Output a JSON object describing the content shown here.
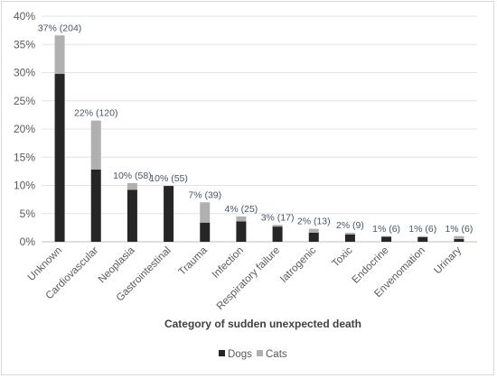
{
  "chart_data": {
    "type": "bar",
    "stacked": true,
    "categories": [
      "Unknown",
      "Cardiovascular",
      "Neoplasia",
      "Gastrointestinal",
      "Trauma",
      "Infection",
      "Respiratory failure",
      "Iatrogenic",
      "Toxic",
      "Endocrine",
      "Envenomation",
      "Urinary"
    ],
    "series": [
      {
        "name": "Dogs",
        "color": "#262626",
        "values": [
          29.8,
          12.8,
          9.2,
          9.9,
          3.4,
          3.6,
          2.7,
          1.6,
          1.3,
          0.9,
          0.8,
          0.5
        ]
      },
      {
        "name": "Cats",
        "color": "#b0b0b0",
        "values": [
          6.8,
          8.7,
          1.2,
          0.0,
          3.6,
          0.9,
          0.3,
          0.7,
          0.3,
          0.1,
          0.2,
          0.5
        ]
      }
    ],
    "data_labels": [
      "37% (204)",
      "22% (120)",
      "10% (58)",
      "10% (55)",
      "7% (39)",
      "4% (25)",
      "3% (17)",
      "2% (13)",
      "2% (9)",
      "1% (6)",
      "1% (6)",
      "1% (6)"
    ],
    "y_ticks": [
      "0%",
      "5%",
      "10%",
      "15%",
      "20%",
      "25%",
      "30%",
      "35%",
      "40%"
    ],
    "ylim": [
      0,
      40
    ],
    "xlabel": "Category of sudden unexpected death",
    "ylabel": "",
    "grid": true,
    "legend": "bottom"
  }
}
